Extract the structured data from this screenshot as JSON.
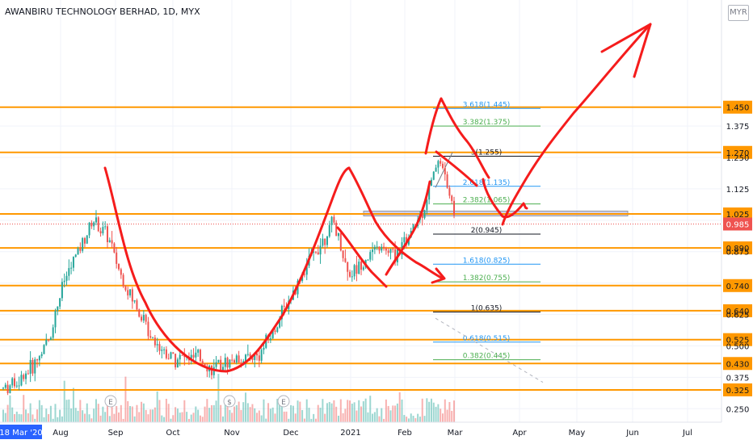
{
  "chart_data": {
    "type": "candlestick",
    "title": "AWANBIRU TECHNOLOGY BERHAD, 1D, MYX",
    "currency": "MYR",
    "last_price": "0.985",
    "price_range": [
      0.23,
      1.53
    ],
    "price_ticks": [
      "1.450",
      "1.375",
      "1.270",
      "1.250",
      "1.125",
      "1.025",
      "0.985",
      "0.890",
      "0.875",
      "0.740",
      "0.640",
      "0.625",
      "0.525",
      "0.500",
      "0.430",
      "0.375",
      "0.325",
      "0.250"
    ],
    "time_labels": [
      "18 Mar '20",
      "Aug",
      "Sep",
      "Oct",
      "Nov",
      "Dec",
      "2021",
      "Feb",
      "Mar",
      "Apr",
      "May",
      "Jun",
      "Jul"
    ],
    "horizontal_levels": [
      1.45,
      1.27,
      1.025,
      0.89,
      0.74,
      0.64,
      0.525,
      0.43,
      0.325
    ],
    "highlighted_levels": [
      "1.450",
      "1.270",
      "1.025",
      "0.890",
      "0.740",
      "0.640",
      "0.525",
      "0.430",
      "0.325"
    ],
    "fib_levels": [
      {
        "label": "3.618(1.445)",
        "value": 1.445
      },
      {
        "label": "3.382(1.375)",
        "value": 1.375
      },
      {
        "label": "3(1.255)",
        "value": 1.255
      },
      {
        "label": "2.618(1.135)",
        "value": 1.135
      },
      {
        "label": "2.382(1.065)",
        "value": 1.065
      },
      {
        "label": "2(0.945)",
        "value": 0.945
      },
      {
        "label": "1.618(0.825)",
        "value": 0.825
      },
      {
        "label": "1.382(0.755)",
        "value": 0.755
      },
      {
        "label": "1(0.635)",
        "value": 0.635
      },
      {
        "label": "0.618(0.515)",
        "value": 0.515
      },
      {
        "label": "0.382(0.445)",
        "value": 0.445
      }
    ],
    "event_markers": [
      "E",
      "$",
      "E"
    ],
    "price_path": [
      [
        "Jul",
        0.33
      ],
      [
        "Jul",
        0.36
      ],
      [
        "Aug",
        0.42
      ],
      [
        "Aug",
        0.52
      ],
      [
        "Aug",
        0.75
      ],
      [
        "Aug",
        0.88
      ],
      [
        "Sep",
        1.0
      ],
      [
        "Sep",
        0.93
      ],
      [
        "Sep",
        0.75
      ],
      [
        "Sep",
        0.64
      ],
      [
        "Oct",
        0.53
      ],
      [
        "Oct",
        0.46
      ],
      [
        "Oct",
        0.45
      ],
      [
        "Oct",
        0.45
      ],
      [
        "Nov",
        0.4
      ],
      [
        "Nov",
        0.44
      ],
      [
        "Nov",
        0.45
      ],
      [
        "Dec",
        0.46
      ],
      [
        "Dec",
        0.56
      ],
      [
        "Dec",
        0.68
      ],
      [
        "Dec",
        0.8
      ],
      [
        "Dec",
        0.9
      ],
      [
        "2021",
        0.99
      ],
      [
        "2021",
        0.78
      ],
      [
        "2021",
        0.84
      ],
      [
        "2021",
        0.89
      ],
      [
        "Feb",
        0.86
      ],
      [
        "Feb",
        0.93
      ],
      [
        "Feb",
        1.05
      ],
      [
        "Feb",
        1.26
      ],
      [
        "Feb",
        1.03
      ]
    ]
  }
}
